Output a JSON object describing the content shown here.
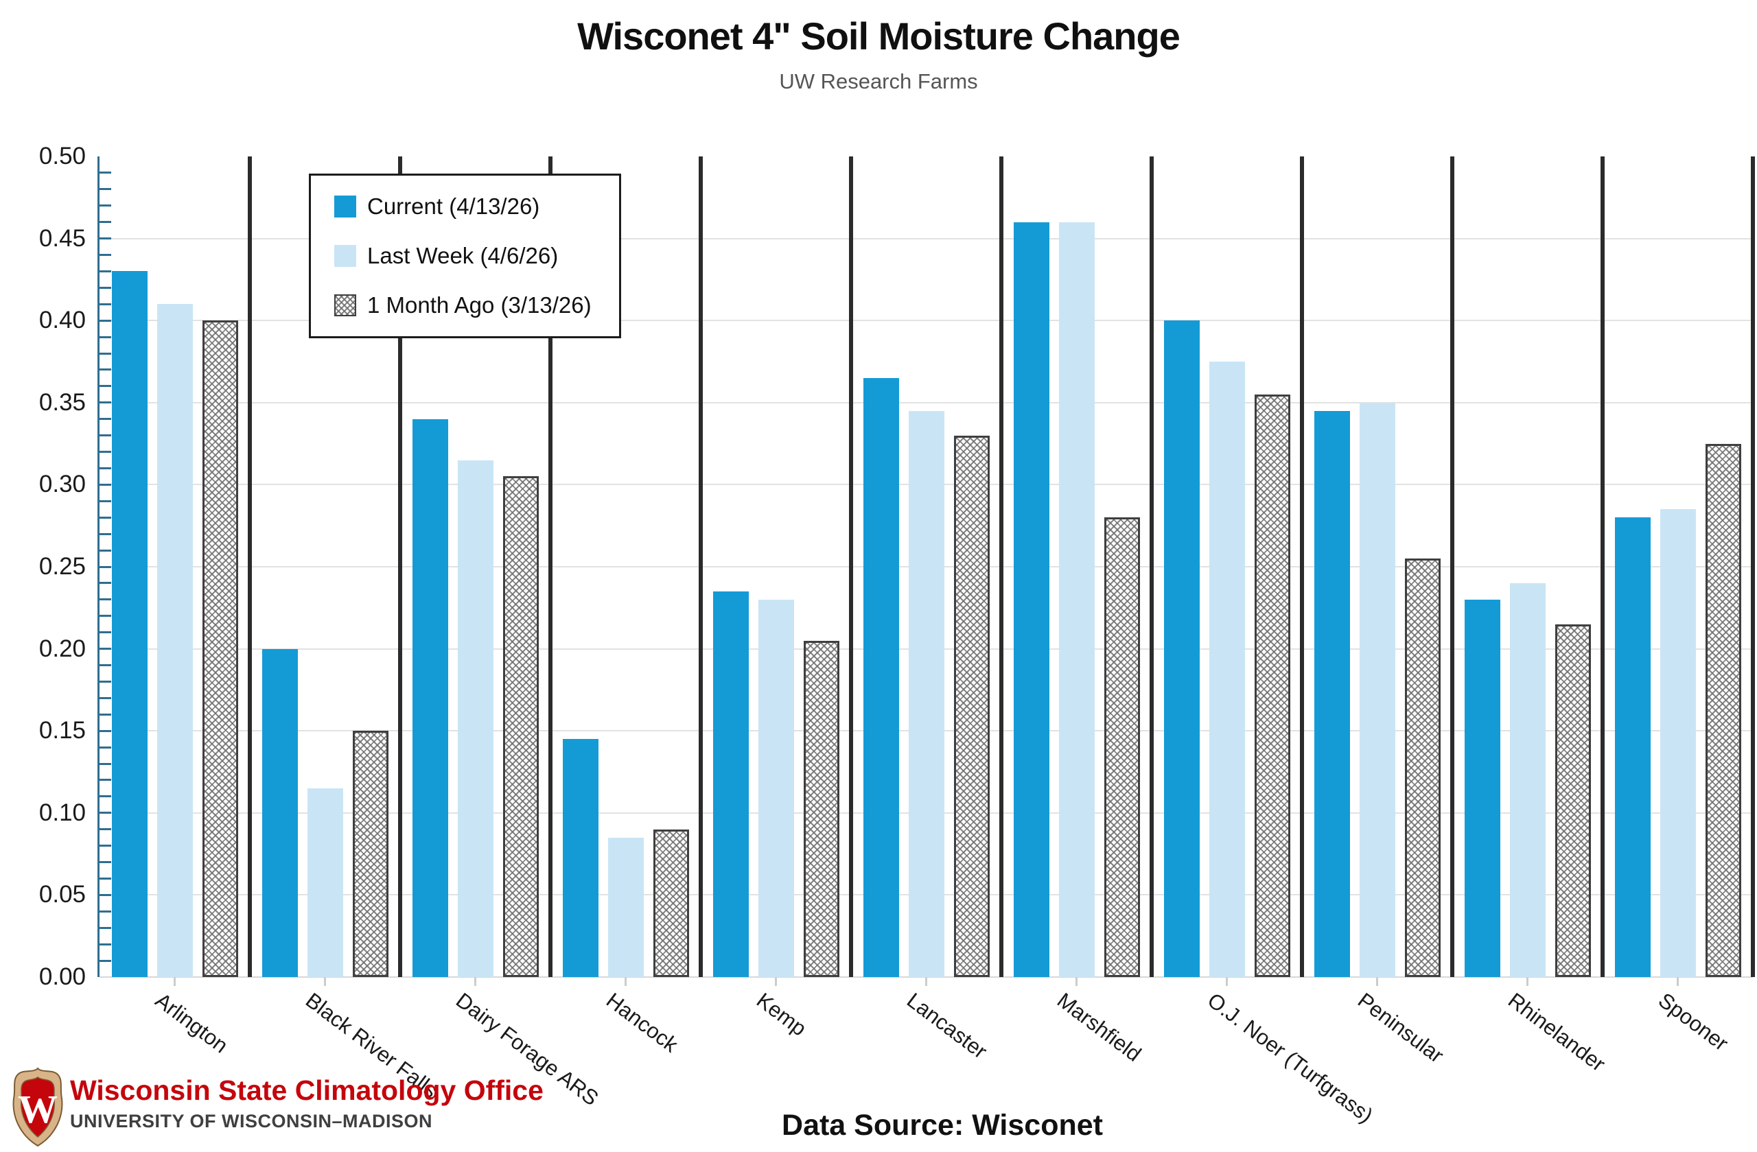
{
  "header": {
    "title": "Wisconet 4\" Soil Moisture Change",
    "subtitle": "UW Research Farms"
  },
  "footer": {
    "org_name": "Wisconsin State Climatology Office",
    "org_sub": "UNIVERSITY OF WISCONSIN–MADISON",
    "logo_monogram": "W",
    "data_source": "Data Source: Wisconet"
  },
  "colors": {
    "current_blue": "#149bd6",
    "last_week_blue": "#c9e5f5",
    "hatch_gray": "#6e6e6e",
    "separator": "#2b2b2b",
    "gridline": "#e2e2e2",
    "axis_spine": "#2f6e90",
    "uw_red": "#c5050c"
  },
  "chart_data": {
    "type": "bar",
    "title": "Wisconet 4\" Soil Moisture Change",
    "subtitle": "UW Research Farms",
    "categories": [
      "Arlington",
      "Black River Falls",
      "Dairy Forage ARS",
      "Hancock",
      "Kemp",
      "Lancaster",
      "Marshfield",
      "O.J. Noer (Turfgrass)",
      "Peninsular",
      "Rhinelander",
      "Spooner"
    ],
    "series": [
      {
        "name": "Current (4/13/26)",
        "style": "solid-0",
        "values": [
          0.43,
          0.2,
          0.34,
          0.145,
          0.235,
          0.365,
          0.46,
          0.4,
          0.345,
          0.23,
          0.28
        ]
      },
      {
        "name": "Last Week (4/6/26)",
        "style": "solid-1",
        "values": [
          0.41,
          0.115,
          0.315,
          0.085,
          0.23,
          0.345,
          0.46,
          0.375,
          0.35,
          0.24,
          0.285
        ]
      },
      {
        "name": "1 Month Ago (3/13/26)",
        "style": "hatch",
        "values": [
          0.4,
          0.15,
          0.305,
          0.09,
          0.205,
          0.33,
          0.28,
          0.355,
          0.255,
          0.215,
          0.325
        ]
      }
    ],
    "ylim": [
      0.0,
      0.5
    ],
    "ytick_step": 0.05,
    "yminor_step": 0.01,
    "grid": "horizontal major",
    "legend_position": "upper left inside plot",
    "xlabel": "",
    "ylabel": ""
  }
}
